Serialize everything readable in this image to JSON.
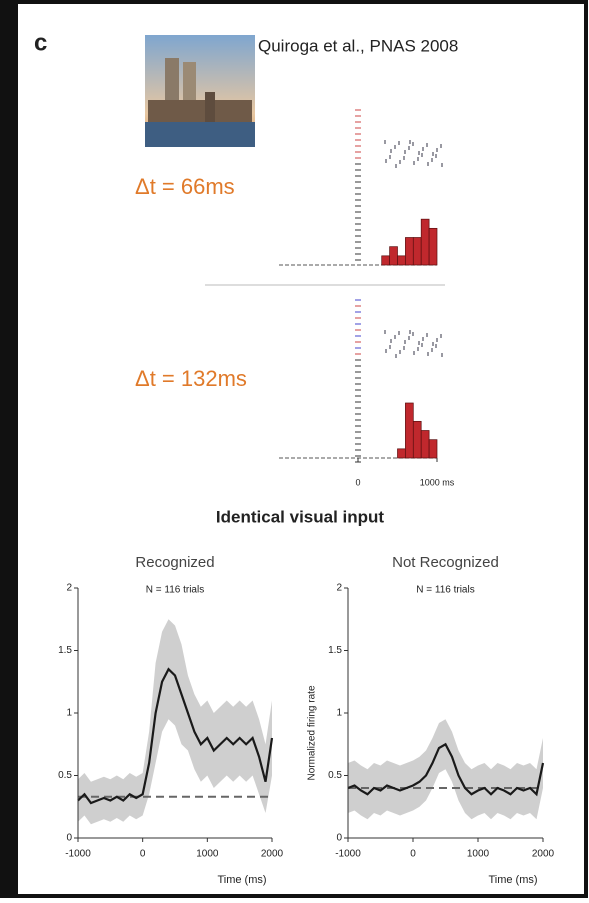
{
  "panel_label": "c",
  "citation": "Quiroga et al., PNAS 2008",
  "conditions": [
    "Δt = 66ms",
    "Δt = 132ms"
  ],
  "section_title": "Identical visual input",
  "chart_data": [
    {
      "type": "histogram",
      "color": "#c0282d",
      "bins": [
        -1000,
        -900,
        -800,
        -700,
        -600,
        -500,
        -400,
        -300,
        -200,
        -100,
        0,
        100,
        200,
        300,
        400,
        500,
        600,
        700,
        800,
        900,
        1000
      ],
      "counts": [
        0,
        0,
        0,
        0,
        0,
        0,
        0,
        0,
        0,
        0,
        0,
        0,
        0,
        1,
        2,
        1,
        3,
        3,
        5,
        4
      ],
      "xlim": [
        -1000,
        1000
      ],
      "ylim": [
        0,
        6
      ],
      "xticks": []
    },
    {
      "type": "histogram",
      "color": "#c0282d",
      "bins": [
        -1000,
        -900,
        -800,
        -700,
        -600,
        -500,
        -400,
        -300,
        -200,
        -100,
        0,
        100,
        200,
        300,
        400,
        500,
        600,
        700,
        800,
        900,
        1000
      ],
      "counts": [
        0,
        0,
        0,
        0,
        0,
        0,
        0,
        0,
        0,
        0,
        0,
        0,
        0,
        0,
        0,
        1,
        6,
        4,
        3,
        2
      ],
      "xlim": [
        -1000,
        1000
      ],
      "ylim": [
        0,
        6
      ],
      "xticks": [
        0,
        {
          "value": 1000,
          "label": "1000 ms"
        }
      ]
    },
    {
      "type": "line",
      "title": "Recognized",
      "subtitle": "N = 116 trials",
      "xlabel": "Time (ms)",
      "x": [
        -1000,
        -900,
        -800,
        -700,
        -600,
        -500,
        -400,
        -300,
        -200,
        -100,
        0,
        100,
        200,
        300,
        400,
        500,
        600,
        700,
        800,
        900,
        1000,
        1100,
        1200,
        1300,
        1400,
        1500,
        1600,
        1700,
        1800,
        1900,
        2000
      ],
      "values": [
        0.3,
        0.35,
        0.28,
        0.3,
        0.32,
        0.3,
        0.33,
        0.3,
        0.35,
        0.32,
        0.35,
        0.6,
        1.0,
        1.25,
        1.35,
        1.3,
        1.15,
        1.0,
        0.85,
        0.75,
        0.8,
        0.7,
        0.75,
        0.8,
        0.75,
        0.8,
        0.75,
        0.8,
        0.65,
        0.45,
        0.8
      ],
      "band_lower": [
        0.13,
        0.18,
        0.11,
        0.13,
        0.15,
        0.13,
        0.16,
        0.13,
        0.18,
        0.15,
        0.18,
        0.35,
        0.6,
        0.85,
        0.95,
        0.9,
        0.75,
        0.7,
        0.55,
        0.45,
        0.5,
        0.4,
        0.45,
        0.5,
        0.45,
        0.5,
        0.45,
        0.5,
        0.35,
        0.2,
        0.5
      ],
      "band_upper": [
        0.47,
        0.52,
        0.45,
        0.47,
        0.49,
        0.47,
        0.5,
        0.47,
        0.52,
        0.49,
        0.52,
        0.85,
        1.4,
        1.65,
        1.75,
        1.7,
        1.55,
        1.3,
        1.15,
        1.05,
        1.1,
        1.0,
        1.05,
        1.1,
        1.05,
        1.1,
        1.05,
        1.1,
        0.95,
        0.75,
        1.1
      ],
      "baseline": 0.33,
      "color": "#1a1a1a",
      "band_color": "#cfcfcf",
      "baseline_color": "#666666",
      "xlim": [
        -1000,
        2000
      ],
      "ylim": [
        0,
        2
      ],
      "xticks": [
        -1000,
        0,
        1000,
        2000
      ],
      "yticks": [
        0,
        0.5,
        1,
        1.5,
        2
      ]
    },
    {
      "type": "line",
      "title": "Not Recognized",
      "subtitle": "N = 116 trials",
      "xlabel": "Time (ms)",
      "ylabel": "Normalized firing rate",
      "x": [
        -1000,
        -900,
        -800,
        -700,
        -600,
        -500,
        -400,
        -300,
        -200,
        -100,
        0,
        100,
        200,
        300,
        400,
        500,
        600,
        700,
        800,
        900,
        1000,
        1100,
        1200,
        1300,
        1400,
        1500,
        1600,
        1700,
        1800,
        1900,
        2000
      ],
      "values": [
        0.4,
        0.42,
        0.38,
        0.35,
        0.4,
        0.38,
        0.42,
        0.4,
        0.38,
        0.4,
        0.42,
        0.45,
        0.5,
        0.6,
        0.72,
        0.75,
        0.65,
        0.5,
        0.4,
        0.35,
        0.38,
        0.4,
        0.35,
        0.4,
        0.38,
        0.35,
        0.4,
        0.38,
        0.4,
        0.35,
        0.6
      ],
      "band_lower": [
        0.2,
        0.22,
        0.18,
        0.15,
        0.2,
        0.18,
        0.22,
        0.2,
        0.18,
        0.2,
        0.22,
        0.25,
        0.3,
        0.4,
        0.52,
        0.55,
        0.45,
        0.3,
        0.2,
        0.15,
        0.18,
        0.2,
        0.15,
        0.2,
        0.18,
        0.15,
        0.2,
        0.18,
        0.2,
        0.15,
        0.4
      ],
      "band_upper": [
        0.6,
        0.62,
        0.58,
        0.55,
        0.6,
        0.58,
        0.62,
        0.6,
        0.58,
        0.6,
        0.62,
        0.65,
        0.7,
        0.8,
        0.92,
        0.95,
        0.85,
        0.7,
        0.6,
        0.55,
        0.58,
        0.6,
        0.55,
        0.6,
        0.58,
        0.55,
        0.6,
        0.58,
        0.6,
        0.55,
        0.8
      ],
      "baseline": 0.4,
      "color": "#1a1a1a",
      "band_color": "#cfcfcf",
      "baseline_color": "#666666",
      "xlim": [
        -1000,
        2000
      ],
      "ylim": [
        0,
        2
      ],
      "xticks": [
        -1000,
        0,
        1000,
        2000
      ],
      "yticks": [
        0,
        0.5,
        1,
        1.5,
        2
      ]
    }
  ]
}
